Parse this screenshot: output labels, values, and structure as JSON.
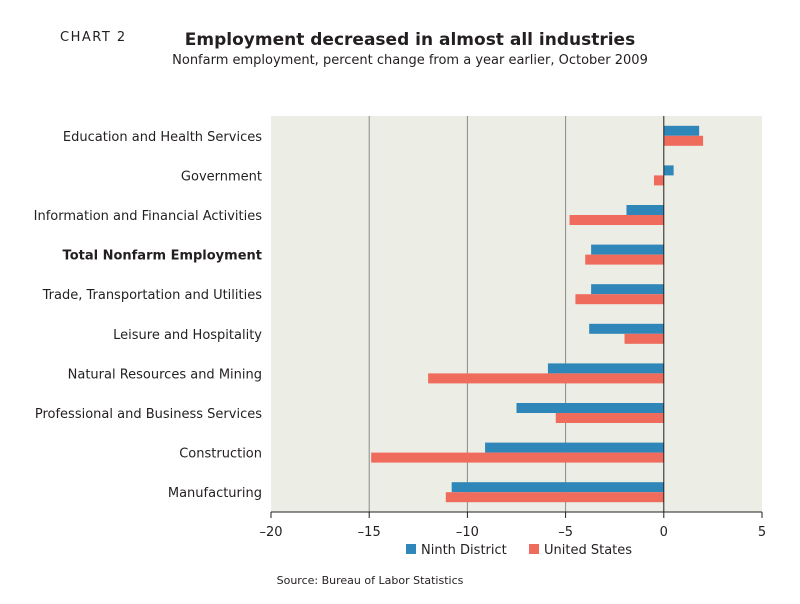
{
  "header": {
    "chart_label": "Chart 2",
    "title": "Employment decreased in almost all industries",
    "subtitle": "Nonfarm employment, percent change from a year earlier, October 2009"
  },
  "source": "Source: Bureau of Labor Statistics",
  "colors": {
    "plot_background": "#ecede5",
    "ninth_district": "#2f86b8",
    "united_states": "#ef6b5c",
    "gridline": "#8a8a8a"
  },
  "chart_data": {
    "type": "bar",
    "orientation": "horizontal",
    "categories": [
      "Education and Health Services",
      "Government",
      "Information and Financial Activities",
      "Total Nonfarm Employment",
      "Trade, Transportation and Utilities",
      "Leisure and Hospitality",
      "Natural Resources and Mining",
      "Professional and Business Services",
      "Construction",
      "Manufacturing"
    ],
    "bold_category": "Total Nonfarm Employment",
    "series": [
      {
        "name": "Ninth District",
        "color": "#2f86b8",
        "values": [
          1.8,
          0.5,
          -1.9,
          -3.7,
          -3.7,
          -3.8,
          -5.9,
          -7.5,
          -9.1,
          -10.8
        ]
      },
      {
        "name": "United States",
        "color": "#ef6b5c",
        "values": [
          2.0,
          -0.5,
          -4.8,
          -4.0,
          -4.5,
          -2.0,
          -12.0,
          -5.5,
          -14.9,
          -11.1
        ]
      }
    ],
    "xlim": [
      -20,
      5
    ],
    "xticks": [
      -20,
      -15,
      -10,
      -5,
      0,
      5
    ],
    "xtick_labels": [
      "–20",
      "–15",
      "–10",
      "–5",
      "0",
      "5"
    ],
    "gridlines_at": [
      -15,
      -10,
      -5
    ],
    "legend_position": "bottom",
    "title": "Employment decreased in almost all industries",
    "xlabel": "",
    "ylabel": ""
  }
}
